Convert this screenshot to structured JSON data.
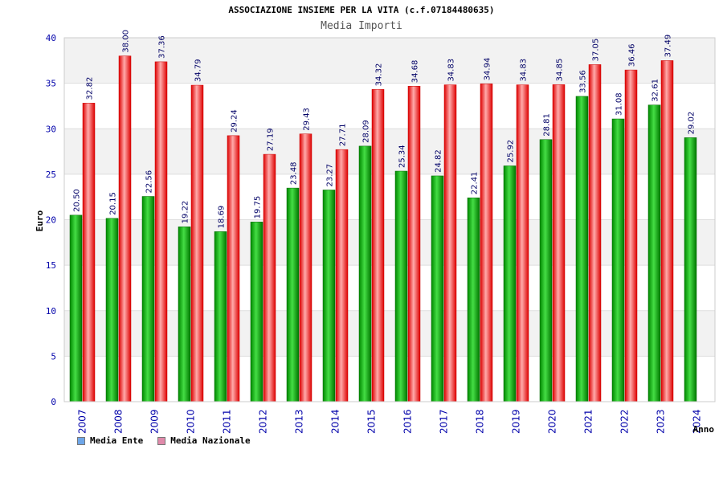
{
  "chart_data": {
    "type": "bar",
    "title": "ASSOCIAZIONE INSIEME PER LA VITA (c.f.07184480635)",
    "subtitle": "Media Importi",
    "xlabel": "Anno",
    "ylabel": "Euro",
    "ylim": [
      0,
      40
    ],
    "yticks": [
      0,
      5,
      10,
      15,
      20,
      25,
      30,
      35,
      40
    ],
    "categories": [
      "2007",
      "2008",
      "2009",
      "2010",
      "2011",
      "2012",
      "2013",
      "2014",
      "2015",
      "2016",
      "2017",
      "2018",
      "2019",
      "2020",
      "2021",
      "2022",
      "2023",
      "2024"
    ],
    "series": [
      {
        "name": "Media Ente",
        "color": "#22aa22",
        "values": [
          20.5,
          20.15,
          22.56,
          19.22,
          18.69,
          19.75,
          23.48,
          23.27,
          28.09,
          25.34,
          24.82,
          22.41,
          25.92,
          28.81,
          33.56,
          31.08,
          32.61,
          29.02
        ],
        "labels": [
          "20.50",
          "20.15",
          "22.56",
          "19.22",
          "18.69",
          "19.75",
          "23.48",
          "23.27",
          "28.09",
          "25.34",
          "24.82",
          "22.41",
          "25.92",
          "28.81",
          "33.56",
          "31.08",
          "32.61",
          "29.02"
        ]
      },
      {
        "name": "Media Nazionale",
        "color": "#ee2222",
        "values": [
          32.82,
          38.0,
          37.36,
          34.79,
          29.24,
          27.19,
          29.43,
          27.71,
          34.32,
          34.68,
          34.83,
          34.94,
          34.83,
          34.85,
          37.05,
          36.46,
          37.49,
          null
        ],
        "labels": [
          "32.82",
          "38.00",
          "37.36",
          "34.79",
          "29.24",
          "27.19",
          "29.43",
          "27.71",
          "34.32",
          "34.68",
          "34.83",
          "34.94",
          "34.83",
          "34.85",
          "37.05",
          "36.46",
          "37.49",
          ""
        ]
      }
    ],
    "legend": [
      {
        "label": "Media Ente",
        "color": "#6ea6e8"
      },
      {
        "label": "Media Nazionale",
        "color": "#e08aaa"
      }
    ]
  }
}
